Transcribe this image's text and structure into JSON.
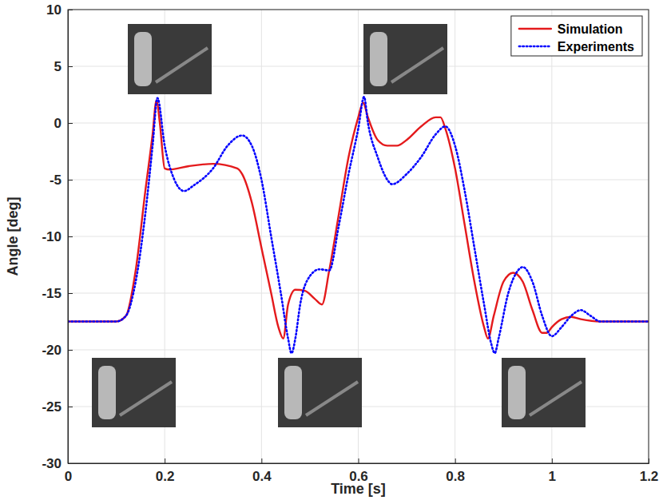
{
  "chart_data": {
    "type": "line",
    "x_label": "Time [s]",
    "y_label": "Angle [deg]",
    "xlim": [
      0,
      1.2
    ],
    "ylim": [
      -30,
      10
    ],
    "xticks": [
      0,
      0.2,
      0.4,
      0.6,
      0.8,
      1,
      1.2
    ],
    "yticks": [
      -30,
      -25,
      -20,
      -15,
      -10,
      -5,
      0,
      5,
      10
    ],
    "grid": true,
    "legend": "top-right",
    "series": [
      {
        "name": "Simulation",
        "color": "#e41a1c",
        "line_style": "solid",
        "x": [
          0,
          0.1,
          0.12,
          0.14,
          0.16,
          0.175,
          0.183,
          0.19,
          0.2,
          0.21,
          0.25,
          0.3,
          0.35,
          0.36,
          0.38,
          0.4,
          0.42,
          0.435,
          0.445,
          0.455,
          0.47,
          0.49,
          0.51,
          0.525,
          0.54,
          0.56,
          0.58,
          0.6,
          0.61,
          0.62,
          0.64,
          0.66,
          0.68,
          0.7,
          0.73,
          0.76,
          0.77,
          0.78,
          0.8,
          0.82,
          0.84,
          0.86,
          0.868,
          0.88,
          0.9,
          0.92,
          0.94,
          0.96,
          0.98,
          0.99,
          1.0,
          1.02,
          1.04,
          1.06,
          1.1,
          1.2
        ],
        "values": [
          -17.5,
          -17.5,
          -17,
          -13,
          -6,
          -1,
          2,
          0,
          -4,
          -4.1,
          -3.8,
          -3.6,
          -4,
          -4.5,
          -7,
          -11,
          -15,
          -18,
          -19,
          -16,
          -14.7,
          -14.8,
          -15.5,
          -16,
          -13,
          -8,
          -3,
          0.5,
          1.8,
          0.5,
          -1.5,
          -2,
          -2,
          -1.5,
          -0.3,
          0.5,
          0.5,
          -0.5,
          -4,
          -9,
          -14,
          -18,
          -19,
          -17,
          -14,
          -13.2,
          -14,
          -16.5,
          -18.5,
          -18.5,
          -18,
          -17.3,
          -17.1,
          -17.3,
          -17.5,
          -17.5
        ]
      },
      {
        "name": "Experiments",
        "color": "#0000ff",
        "line_style": "dotted",
        "x": [
          0,
          0.1,
          0.12,
          0.14,
          0.16,
          0.175,
          0.185,
          0.2,
          0.22,
          0.24,
          0.26,
          0.3,
          0.33,
          0.36,
          0.38,
          0.4,
          0.42,
          0.44,
          0.455,
          0.462,
          0.47,
          0.48,
          0.5,
          0.52,
          0.54,
          0.56,
          0.58,
          0.6,
          0.612,
          0.62,
          0.64,
          0.66,
          0.67,
          0.7,
          0.73,
          0.76,
          0.78,
          0.8,
          0.82,
          0.84,
          0.86,
          0.875,
          0.882,
          0.89,
          0.91,
          0.93,
          0.94,
          0.96,
          0.98,
          1.0,
          1.02,
          1.04,
          1.06,
          1.08,
          1.1,
          1.2
        ],
        "values": [
          -17.5,
          -17.5,
          -17,
          -14,
          -8,
          -2,
          2.2,
          -2,
          -5,
          -6,
          -5.5,
          -4,
          -2,
          -1.1,
          -2,
          -5,
          -10,
          -15,
          -19,
          -20.3,
          -19,
          -16,
          -13.5,
          -12.9,
          -13,
          -9,
          -4.5,
          -0.5,
          2.3,
          0,
          -3,
          -5,
          -5.4,
          -4.5,
          -3,
          -1,
          -0.3,
          -2,
          -6,
          -11,
          -16,
          -19.5,
          -20.3,
          -19,
          -15,
          -13,
          -12.7,
          -14,
          -17,
          -18.8,
          -18,
          -17,
          -16.5,
          -17,
          -17.5,
          -17.5
        ]
      }
    ]
  }
}
